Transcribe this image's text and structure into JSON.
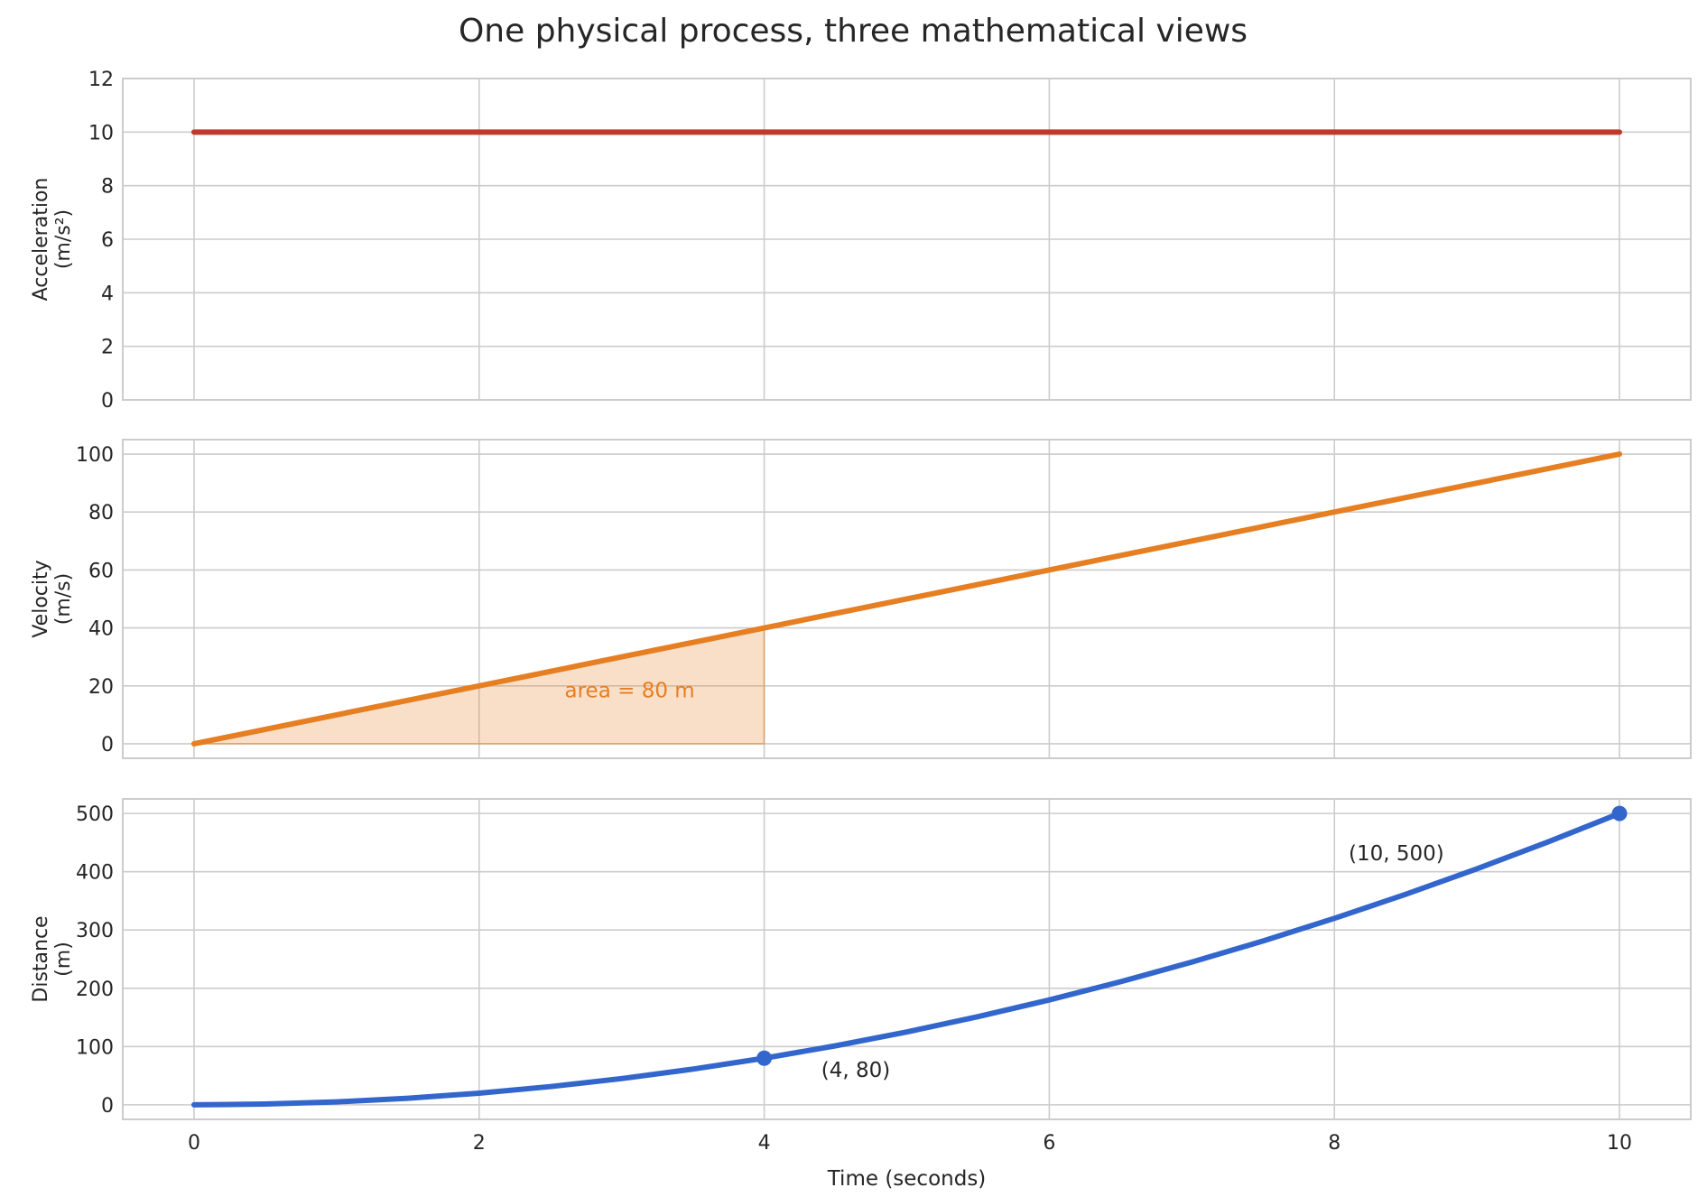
{
  "title": "One physical process, three mathematical views",
  "chart_data": [
    {
      "type": "line",
      "ylabel": [
        "Acceleration",
        "(m/s²)"
      ],
      "xlim": [
        -0.5,
        10.5
      ],
      "ylim": [
        0,
        12
      ],
      "yticks": [
        0,
        2,
        4,
        6,
        8,
        10,
        12
      ],
      "xticks": [
        0,
        2,
        4,
        6,
        8,
        10
      ],
      "grid": true,
      "series": [
        {
          "x": [
            0,
            10
          ],
          "y": [
            10,
            10
          ],
          "color": "#c0392b"
        }
      ]
    },
    {
      "type": "line",
      "ylabel": [
        "Velocity",
        "(m/s)"
      ],
      "xlim": [
        -0.5,
        10.5
      ],
      "ylim": [
        -5,
        105
      ],
      "yticks": [
        0,
        20,
        40,
        60,
        80,
        100
      ],
      "xticks": [
        0,
        2,
        4,
        6,
        8,
        10
      ],
      "grid": true,
      "series": [
        {
          "x": [
            0,
            10
          ],
          "y": [
            0,
            100
          ],
          "color": "#e67e22"
        }
      ],
      "fill": {
        "x": [
          0,
          4
        ],
        "y": [
          0,
          40
        ],
        "color": "#e67e22"
      },
      "annotations": [
        {
          "text": "area = 80 m",
          "x": 2.6,
          "y": 16,
          "color": "#e67e22"
        }
      ]
    },
    {
      "type": "line",
      "ylabel": [
        "Distance",
        "(m)"
      ],
      "xlabel": "Time (seconds)",
      "xlim": [
        -0.5,
        10.5
      ],
      "ylim": [
        -25,
        525
      ],
      "yticks": [
        0,
        100,
        200,
        300,
        400,
        500
      ],
      "xticks": [
        0,
        2,
        4,
        6,
        8,
        10
      ],
      "grid": true,
      "series": [
        {
          "x": [
            0,
            0.5,
            1,
            1.5,
            2,
            2.5,
            3,
            3.5,
            4,
            4.5,
            5,
            5.5,
            6,
            6.5,
            7,
            7.5,
            8,
            8.5,
            9,
            9.5,
            10
          ],
          "y": [
            0,
            1.25,
            5,
            11.25,
            20,
            31.25,
            45,
            61.25,
            80,
            101.25,
            125,
            151.25,
            180,
            211.25,
            245,
            281.25,
            320,
            361.25,
            405,
            451.25,
            500
          ],
          "color": "#3366cc"
        }
      ],
      "points": [
        {
          "x": 4,
          "y": 80,
          "color": "#3366cc"
        },
        {
          "x": 10,
          "y": 500,
          "color": "#3366cc"
        }
      ],
      "annotations": [
        {
          "text": "(4, 80)",
          "x": 4.4,
          "y": 48,
          "color": "#262626"
        },
        {
          "text": "(10, 500)",
          "x": 8.1,
          "y": 420,
          "color": "#262626"
        }
      ]
    }
  ]
}
